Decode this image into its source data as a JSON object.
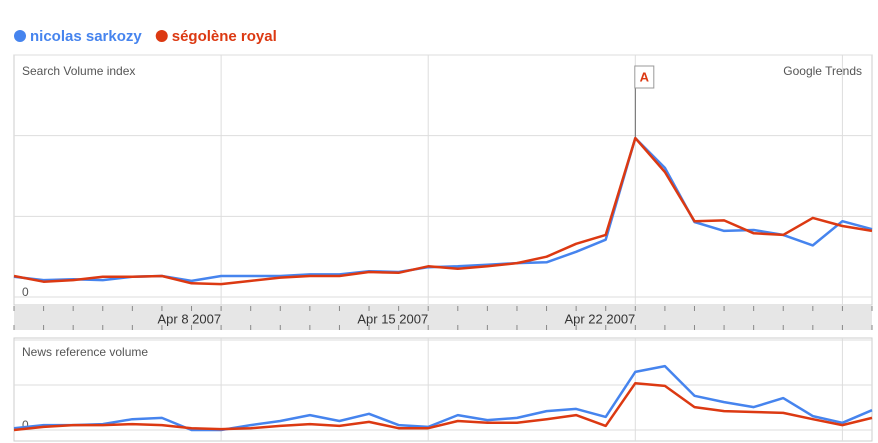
{
  "chart_data": [
    {
      "type": "line",
      "title": "Search Volume index",
      "brand": "Google Trends",
      "x": [
        1,
        2,
        3,
        4,
        5,
        6,
        7,
        8,
        9,
        10,
        11,
        12,
        13,
        14,
        15,
        16,
        17,
        18,
        19,
        20,
        21,
        22,
        23,
        24,
        25,
        26,
        27,
        28,
        29,
        30
      ],
      "xlim": [
        1,
        30
      ],
      "xticks": [
        {
          "value": 8,
          "label": "Apr 8 2007"
        },
        {
          "value": 15,
          "label": "Apr 15 2007"
        },
        {
          "value": 22,
          "label": "Apr 22 2007"
        }
      ],
      "xgrid": [
        8,
        15,
        22,
        29
      ],
      "ylim": [
        0,
        3
      ],
      "yticks": [
        0
      ],
      "ygrid": [
        0,
        1,
        2,
        3
      ],
      "annotation": {
        "label": "A",
        "x": 22
      },
      "series": [
        {
          "name": "nicolas sarkozy",
          "color": "#4684ee",
          "values": [
            0.25,
            0.21,
            0.22,
            0.21,
            0.25,
            0.26,
            0.2,
            0.26,
            0.26,
            0.26,
            0.28,
            0.28,
            0.32,
            0.31,
            0.37,
            0.38,
            0.4,
            0.42,
            0.43,
            0.56,
            0.71,
            1.97,
            1.6,
            0.93,
            0.82,
            0.83,
            0.77,
            0.64,
            0.94,
            0.84
          ]
        },
        {
          "name": "ségolène royal",
          "color": "#dc3912",
          "values": [
            0.26,
            0.19,
            0.21,
            0.25,
            0.25,
            0.26,
            0.17,
            0.16,
            0.2,
            0.24,
            0.26,
            0.26,
            0.31,
            0.3,
            0.38,
            0.35,
            0.38,
            0.42,
            0.5,
            0.66,
            0.77,
            1.97,
            1.55,
            0.94,
            0.95,
            0.79,
            0.77,
            0.98,
            0.88,
            0.82
          ]
        }
      ]
    },
    {
      "type": "line",
      "title": "News reference volume",
      "x": [
        1,
        2,
        3,
        4,
        5,
        6,
        7,
        8,
        9,
        10,
        11,
        12,
        13,
        14,
        15,
        16,
        17,
        18,
        19,
        20,
        21,
        22,
        23,
        24,
        25,
        26,
        27,
        28,
        29,
        30
      ],
      "xlim": [
        1,
        30
      ],
      "xgrid": [
        8,
        15,
        22,
        29
      ],
      "ylim": [
        0,
        2
      ],
      "yticks": [
        0
      ],
      "ygrid": [
        0,
        1,
        2
      ],
      "series": [
        {
          "color": "#4684ee",
          "values": [
            0.04,
            0.11,
            0.11,
            0.13,
            0.24,
            0.27,
            0.0,
            0.0,
            0.11,
            0.2,
            0.33,
            0.2,
            0.36,
            0.11,
            0.07,
            0.33,
            0.22,
            0.27,
            0.42,
            0.47,
            0.29,
            1.29,
            1.42,
            0.76,
            0.62,
            0.51,
            0.71,
            0.31,
            0.16,
            0.44
          ]
        },
        {
          "color": "#dc3912",
          "values": [
            0.0,
            0.07,
            0.11,
            0.11,
            0.13,
            0.11,
            0.04,
            0.02,
            0.04,
            0.09,
            0.13,
            0.09,
            0.18,
            0.04,
            0.04,
            0.2,
            0.16,
            0.16,
            0.24,
            0.33,
            0.09,
            1.04,
            0.98,
            0.51,
            0.42,
            0.4,
            0.38,
            0.24,
            0.11,
            0.27
          ]
        }
      ]
    }
  ]
}
